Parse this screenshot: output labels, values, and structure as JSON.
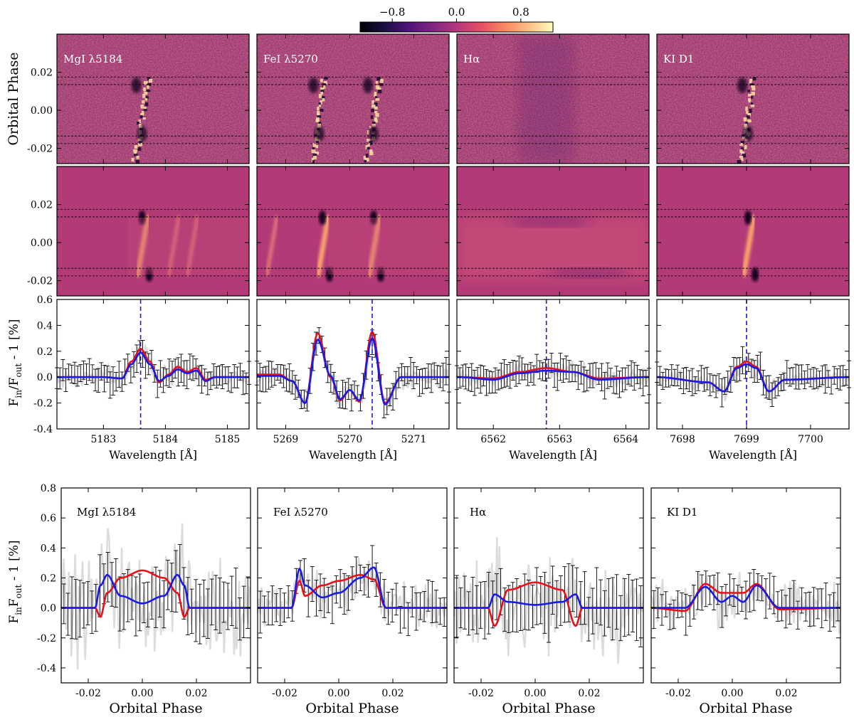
{
  "figure": {
    "colorbar": {
      "tick_labels": [
        "−0.8",
        "0.0",
        "0.8"
      ],
      "tick_values": [
        -0.8,
        0.0,
        0.8
      ],
      "range": [
        -1.2,
        1.2
      ],
      "colormap": "magma"
    },
    "panels": [
      {
        "id": "mg",
        "label_html": "MgI λ5184",
        "obs_label": "MgI λ5184",
        "wavelength_ticks": [
          "5183",
          "5184",
          "5185"
        ],
        "wl_range": [
          5182.25,
          5185.35
        ],
        "wl_tick_values": [
          5183,
          5184,
          5185
        ],
        "line_center": 5183.6
      },
      {
        "id": "fe",
        "label_html": "FeI λ5270",
        "obs_label": "FeI λ5270",
        "wavelength_ticks": [
          "5269",
          "5270",
          "5271"
        ],
        "wl_range": [
          5268.55,
          5271.55
        ],
        "wl_tick_values": [
          5269,
          5270,
          5271
        ],
        "line_center": 5270.35
      },
      {
        "id": "ha",
        "label_html": "Hα",
        "obs_label": "Hα",
        "wavelength_ticks": [
          "6562",
          "6563",
          "6564"
        ],
        "wl_range": [
          6561.45,
          6564.35
        ],
        "wl_tick_values": [
          6562,
          6563,
          6564
        ],
        "line_center": 6562.8
      },
      {
        "id": "k",
        "label_html": "KI D1",
        "obs_label": "KI D1",
        "wavelength_ticks": [
          "7698",
          "7699",
          "7700"
        ],
        "wl_range": [
          7697.6,
          7700.6
        ],
        "wl_tick_values": [
          7698,
          7699,
          7700
        ],
        "line_center": 7699.0
      }
    ],
    "row1": {
      "ylabel": "Orbital Phase",
      "ytick_labels": [
        "0.02",
        "0.00",
        "-0.02"
      ],
      "ytick_values": [
        0.02,
        0.0,
        -0.02
      ],
      "ylim": [
        -0.028,
        0.04
      ]
    },
    "row3": {
      "ylabel_main": "F",
      "ylabel_sub1": "in",
      "ylabel_mid": "/F",
      "ylabel_sub2": "out",
      "ylabel_end": " - 1 [%]",
      "xlabel": "Wavelength [Å]",
      "ytick_labels": [
        "0.6",
        "0.4",
        "0.2",
        "0.0",
        "-0.2",
        "-0.4"
      ],
      "ytick_values": [
        0.6,
        0.4,
        0.2,
        0.0,
        -0.2,
        -0.4
      ],
      "ylim": [
        -0.4,
        0.6
      ]
    },
    "row4": {
      "ylabel_main": "F",
      "ylabel_sub1": "in",
      "ylabel_mid": "F",
      "ylabel_sub2": "out",
      "ylabel_end": " - 1 [%]",
      "xlabel": "Orbital Phase",
      "ytick_labels": [
        "0.8",
        "0.6",
        "0.4",
        "0.2",
        "0.0",
        "-0.2",
        "-0.4"
      ],
      "ytick_values": [
        0.8,
        0.6,
        0.4,
        0.2,
        0.0,
        -0.2,
        -0.4
      ],
      "xtick_labels": [
        "-0.02",
        "0.00",
        "0.02"
      ],
      "xtick_values": [
        -0.02,
        0.0,
        0.02
      ],
      "xlim": [
        -0.03,
        0.04
      ],
      "ylim": [
        -0.5,
        0.8
      ]
    }
  },
  "chart_data": [
    {
      "type": "heatmap",
      "description_rows": "Top row: observed residual maps (orbital phase vs wavelength) per line; second row: model maps",
      "ylabel": "Orbital Phase",
      "ylim": [
        -0.028,
        0.04
      ],
      "transit_phase_markers": [
        0.0175,
        0.0135,
        -0.0135,
        -0.0175
      ],
      "colorbar_range": [
        -1.2,
        1.2
      ]
    },
    {
      "type": "line",
      "ylabel": "Fin/Fout - 1 [%]",
      "xlabel": "Wavelength [Å]",
      "ylim": [
        -0.4,
        0.6
      ],
      "series_colors": {
        "red": "#e8101a",
        "blue": "#1a1ae6",
        "data": "#000000",
        "band": "#dcdcdc"
      },
      "panels": [
        {
          "line": "MgI λ5184",
          "x": [
            5183.0,
            5183.3,
            5183.45,
            5183.6,
            5183.75,
            5183.9,
            5184.05,
            5184.2,
            5184.35,
            5184.5,
            5184.65,
            5184.8
          ],
          "red": [
            0.0,
            -0.01,
            0.12,
            0.22,
            0.12,
            -0.04,
            0.02,
            0.08,
            0.04,
            0.07,
            -0.02,
            0.0
          ],
          "blue": [
            0.0,
            -0.01,
            0.1,
            0.19,
            0.1,
            -0.03,
            0.01,
            0.06,
            0.03,
            0.05,
            -0.03,
            0.0
          ]
        },
        {
          "line": "FeI λ5270",
          "x": [
            5268.9,
            5269.1,
            5269.3,
            5269.5,
            5269.7,
            5269.85,
            5270.0,
            5270.15,
            5270.35,
            5270.55,
            5270.8
          ],
          "red": [
            0.02,
            -0.03,
            -0.2,
            0.34,
            0.0,
            -0.18,
            -0.1,
            -0.19,
            0.35,
            -0.2,
            0.0
          ],
          "blue": [
            0.01,
            -0.03,
            -0.2,
            0.29,
            0.01,
            -0.17,
            -0.1,
            -0.18,
            0.3,
            -0.21,
            0.0
          ]
        },
        {
          "line": "Hα",
          "x": [
            6561.5,
            6562.0,
            6562.4,
            6562.8,
            6563.2,
            6563.6,
            6564.3
          ],
          "red": [
            0.0,
            -0.01,
            0.04,
            0.07,
            0.04,
            -0.01,
            0.0
          ],
          "blue": [
            0.0,
            -0.02,
            0.03,
            0.05,
            0.04,
            -0.02,
            0.0
          ]
        },
        {
          "line": "KI D1",
          "x": [
            7697.6,
            7698.4,
            7698.65,
            7698.85,
            7699.0,
            7699.15,
            7699.35,
            7699.6,
            7700.6
          ],
          "red": [
            0.0,
            -0.04,
            -0.11,
            0.08,
            0.12,
            0.08,
            -0.11,
            -0.02,
            0.0
          ],
          "blue": [
            0.0,
            -0.04,
            -0.11,
            0.07,
            0.1,
            0.07,
            -0.11,
            -0.02,
            0.0
          ]
        }
      ]
    },
    {
      "type": "line",
      "ylabel": "FinFout - 1 [%]",
      "xlabel": "Orbital Phase",
      "xlim": [
        -0.03,
        0.04
      ],
      "ylim": [
        -0.5,
        0.8
      ],
      "panels": [
        {
          "line": "MgI λ5184",
          "x": [
            -0.03,
            -0.0175,
            -0.0155,
            -0.013,
            -0.008,
            0.0,
            0.008,
            0.013,
            0.0155,
            0.0175,
            0.04
          ],
          "red": [
            0.0,
            0.0,
            -0.06,
            0.1,
            0.2,
            0.25,
            0.2,
            0.1,
            -0.06,
            0.0,
            0.0
          ],
          "blue": [
            0.0,
            0.0,
            0.15,
            0.22,
            0.08,
            0.03,
            0.08,
            0.22,
            0.15,
            0.0,
            0.0
          ]
        },
        {
          "line": "FeI λ5270",
          "x": [
            -0.03,
            -0.0175,
            -0.0145,
            -0.0125,
            -0.006,
            0.0,
            0.008,
            0.013,
            0.0175,
            0.04
          ],
          "red": [
            0.0,
            0.0,
            0.18,
            0.08,
            0.15,
            0.18,
            0.22,
            0.19,
            0.0,
            0.0
          ],
          "blue": [
            0.0,
            0.0,
            0.26,
            0.15,
            0.07,
            0.1,
            0.2,
            0.27,
            0.0,
            0.0
          ]
        },
        {
          "line": "Hα",
          "x": [
            -0.03,
            -0.0175,
            -0.015,
            -0.01,
            0.0,
            0.01,
            0.015,
            0.0175,
            0.04
          ],
          "red": [
            0.0,
            0.0,
            -0.12,
            0.12,
            0.17,
            0.12,
            -0.12,
            0.0,
            0.0
          ],
          "blue": [
            0.0,
            0.0,
            0.09,
            0.04,
            0.02,
            0.04,
            0.09,
            0.0,
            0.0
          ]
        },
        {
          "line": "KI D1",
          "x": [
            -0.03,
            -0.0175,
            -0.01,
            -0.004,
            0.0,
            0.004,
            0.009,
            0.0175,
            0.04
          ],
          "red": [
            0.0,
            -0.02,
            0.16,
            0.1,
            0.1,
            0.1,
            0.16,
            -0.01,
            0.0
          ],
          "blue": [
            0.0,
            0.0,
            0.14,
            0.04,
            0.08,
            0.04,
            0.15,
            0.0,
            0.0
          ]
        }
      ]
    }
  ]
}
